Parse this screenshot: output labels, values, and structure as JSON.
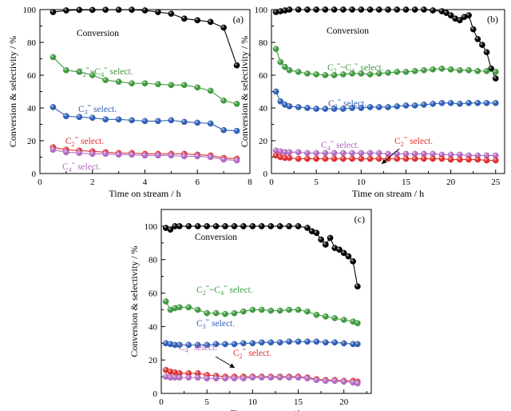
{
  "chart_data": [
    {
      "type": "line",
      "panel_label": "(a)",
      "xlabel": "Time on stream / h",
      "ylabel": "Conversion & selectivity / %",
      "xlim": [
        0,
        8
      ],
      "ylim": [
        0,
        100
      ],
      "xticks": [
        0,
        2,
        4,
        6,
        8
      ],
      "yticks": [
        0,
        20,
        40,
        60,
        80,
        100
      ],
      "series": [
        {
          "key": "conversion",
          "color": "#000000",
          "label": {
            "base": "Conversion",
            "sub": "",
            "sup": "",
            "rest": ""
          },
          "x": [
            0.5,
            1.0,
            1.5,
            2.0,
            2.5,
            3.0,
            3.5,
            4.0,
            4.5,
            5.0,
            5.5,
            6.0,
            6.5,
            7.0,
            7.5
          ],
          "y": [
            98.5,
            99.5,
            99.8,
            99.8,
            99.9,
            99.9,
            99.9,
            99.5,
            98.5,
            97.5,
            94.5,
            93.5,
            92.5,
            89.0,
            66.0
          ]
        },
        {
          "key": "c2c4",
          "color": "#3f9a3f",
          "label": {
            "base": "C",
            "sub": "2",
            "sup": "=",
            "rest": "~C4= select."
          },
          "x": [
            0.5,
            1.0,
            1.5,
            2.0,
            2.5,
            3.0,
            3.5,
            4.0,
            4.5,
            5.0,
            5.5,
            6.0,
            6.5,
            7.0,
            7.5
          ],
          "y": [
            71,
            63,
            62,
            60,
            57,
            56,
            55,
            55,
            54.5,
            54,
            54,
            52.5,
            50.5,
            44.5,
            42.5
          ]
        },
        {
          "key": "c3",
          "color": "#2f5fb5",
          "label": {
            "base": "C",
            "sub": "3",
            "sup": "=",
            "rest": " select."
          },
          "x": [
            0.5,
            1.0,
            1.5,
            2.0,
            2.5,
            3.0,
            3.5,
            4.0,
            4.5,
            5.0,
            5.5,
            6.0,
            6.5,
            7.0,
            7.5
          ],
          "y": [
            40.5,
            35,
            34.5,
            34,
            33,
            33,
            32.5,
            32,
            32,
            32.5,
            31.5,
            31,
            30.5,
            26.5,
            26
          ]
        },
        {
          "key": "c2",
          "color": "#e03030",
          "label": {
            "base": "C",
            "sub": "2",
            "sup": "=",
            "rest": " select."
          },
          "x": [
            0.5,
            1.0,
            1.5,
            2.0,
            2.5,
            3.0,
            3.5,
            4.0,
            4.5,
            5.0,
            5.5,
            6.0,
            6.5,
            7.0,
            7.5
          ],
          "y": [
            16,
            14.5,
            14,
            13.5,
            13,
            12.5,
            12.5,
            12,
            12,
            12,
            12,
            11.5,
            11,
            9.5,
            9
          ]
        },
        {
          "key": "c4",
          "color": "#b36bc2",
          "label": {
            "base": "C",
            "sub": "4",
            "sup": "=",
            "rest": " select."
          },
          "x": [
            0.5,
            1.0,
            1.5,
            2.0,
            2.5,
            3.0,
            3.5,
            4.0,
            4.5,
            5.0,
            5.5,
            6.0,
            6.5,
            7.0,
            7.5
          ],
          "y": [
            14.5,
            13,
            12.5,
            12,
            12,
            11.5,
            11.5,
            11,
            11,
            11,
            10.5,
            10.5,
            10,
            8.5,
            8
          ]
        }
      ]
    },
    {
      "type": "line",
      "panel_label": "(b)",
      "xlabel": "Time on stream / h",
      "ylabel": "Conversion & selectivity / %",
      "xlim": [
        0,
        26
      ],
      "ylim": [
        0,
        100
      ],
      "xticks": [
        0,
        5,
        10,
        15,
        20,
        25
      ],
      "yticks": [
        0,
        20,
        40,
        60,
        80,
        100
      ],
      "series": [
        {
          "key": "conversion",
          "color": "#000000",
          "label": {
            "base": "Conversion",
            "sub": "",
            "sup": "",
            "rest": ""
          },
          "x": [
            0.5,
            1,
            1.5,
            2,
            3,
            4,
            5,
            6,
            7,
            8,
            9,
            10,
            11,
            12,
            13,
            14,
            15,
            16,
            17,
            18,
            19,
            19.5,
            20,
            20.5,
            21,
            21.5,
            22,
            22.5,
            23,
            23.5,
            24,
            24.5,
            25
          ],
          "y": [
            98.5,
            99,
            99.5,
            100,
            100,
            100,
            100,
            100,
            100,
            100,
            100,
            100,
            100,
            100,
            100,
            100,
            100,
            100,
            100,
            99.5,
            99,
            98,
            96.5,
            94.5,
            93.5,
            95.5,
            96.5,
            88,
            82,
            78.5,
            74,
            64,
            58
          ]
        },
        {
          "key": "c2c4",
          "color": "#3f9a3f",
          "label": {
            "base": "C",
            "sub": "2",
            "sup": "=",
            "rest": "~C4= select."
          },
          "x": [
            0.5,
            1,
            1.5,
            2,
            3,
            4,
            5,
            6,
            7,
            8,
            9,
            10,
            11,
            12,
            13,
            14,
            15,
            16,
            17,
            18,
            19,
            20,
            21,
            22,
            23,
            24,
            25
          ],
          "y": [
            76,
            68,
            65,
            63,
            62,
            61,
            60.5,
            60,
            60,
            60.5,
            61,
            61,
            60.5,
            61,
            61.5,
            62,
            62,
            62.5,
            63,
            63.5,
            64,
            63.5,
            63,
            63,
            62.5,
            62.5,
            62
          ]
        },
        {
          "key": "c3",
          "color": "#2f5fb5",
          "label": {
            "base": "C",
            "sub": "3",
            "sup": "=",
            "rest": " select."
          },
          "x": [
            0.5,
            1,
            1.5,
            2,
            3,
            4,
            5,
            6,
            7,
            8,
            9,
            10,
            11,
            12,
            13,
            14,
            15,
            16,
            17,
            18,
            19,
            20,
            21,
            22,
            23,
            24,
            25
          ],
          "y": [
            50,
            44,
            42,
            41,
            40.5,
            40,
            39.5,
            39.5,
            39.5,
            39.5,
            40,
            40,
            40.5,
            40.5,
            40.5,
            41,
            41.5,
            41.5,
            42,
            42.5,
            43,
            43,
            42.5,
            43,
            43,
            43,
            43
          ]
        },
        {
          "key": "c4",
          "color": "#b36bc2",
          "label": {
            "base": "C",
            "sub": "4",
            "sup": "=",
            "rest": " select."
          },
          "x": [
            0.5,
            1,
            1.5,
            2,
            3,
            4,
            5,
            6,
            7,
            8,
            9,
            10,
            11,
            12,
            13,
            14,
            15,
            16,
            17,
            18,
            19,
            20,
            21,
            22,
            23,
            24,
            25
          ],
          "y": [
            14,
            13.5,
            13,
            13,
            13,
            12.5,
            12.5,
            12.5,
            12.5,
            12.5,
            12.5,
            12.5,
            12.5,
            12.5,
            12,
            12,
            12,
            12,
            12,
            12,
            11.5,
            11.5,
            11.5,
            11,
            11,
            11,
            11
          ]
        },
        {
          "key": "c2",
          "color": "#e03030",
          "label": {
            "base": "C",
            "sub": "2",
            "sup": "=",
            "rest": " select."
          },
          "x": [
            0.5,
            1,
            1.5,
            2,
            3,
            4,
            5,
            6,
            7,
            8,
            9,
            10,
            11,
            12,
            13,
            14,
            15,
            16,
            17,
            18,
            19,
            20,
            21,
            22,
            23,
            24,
            25
          ],
          "y": [
            11,
            10,
            9.5,
            9.5,
            9,
            9,
            9,
            9,
            9,
            9,
            9,
            9,
            9,
            9,
            9,
            9,
            9,
            9,
            9,
            9,
            9,
            8.5,
            8.5,
            8.5,
            8.5,
            8,
            8
          ]
        }
      ]
    },
    {
      "type": "line",
      "panel_label": "(c)",
      "xlabel": "Time on stream / h",
      "ylabel": "Conversion & selectivity / %",
      "xlim": [
        0,
        23
      ],
      "ylim": [
        0,
        110
      ],
      "xticks": [
        0,
        5,
        10,
        15,
        20
      ],
      "yticks": [
        0,
        20,
        40,
        60,
        80,
        100
      ],
      "series": [
        {
          "key": "conversion",
          "color": "#000000",
          "label": {
            "base": "Conversion",
            "sub": "",
            "sup": "",
            "rest": ""
          },
          "x": [
            0.5,
            1,
            1.5,
            2,
            3,
            4,
            5,
            6,
            7,
            8,
            9,
            10,
            11,
            12,
            13,
            14,
            15,
            16,
            16.5,
            17,
            17.5,
            18,
            18.5,
            19,
            19.5,
            20,
            20.5,
            21,
            21.5
          ],
          "y": [
            99,
            98,
            100,
            100,
            100,
            100,
            100,
            100,
            100,
            100,
            100,
            100,
            100,
            100,
            100,
            100,
            100,
            99,
            97,
            96,
            92,
            89,
            93,
            87,
            86,
            84,
            82,
            79,
            64
          ]
        },
        {
          "key": "c2c4",
          "color": "#3f9a3f",
          "label": {
            "base": "C",
            "sub": "2",
            "sup": "=",
            "rest": "~C4= select."
          },
          "x": [
            0.5,
            1,
            1.5,
            2,
            3,
            4,
            5,
            6,
            7,
            8,
            9,
            10,
            11,
            12,
            13,
            14,
            15,
            16,
            17,
            18,
            19,
            20,
            21,
            21.5
          ],
          "y": [
            55,
            50,
            51,
            51.5,
            51.5,
            50,
            48,
            48,
            47.5,
            48,
            49,
            50,
            50,
            49.5,
            49.5,
            50,
            50,
            49,
            47,
            46,
            45,
            44,
            43,
            42
          ]
        },
        {
          "key": "c3",
          "color": "#2f5fb5",
          "label": {
            "base": "C",
            "sub": "3",
            "sup": "=",
            "rest": " select."
          },
          "x": [
            0.5,
            1,
            1.5,
            2,
            3,
            4,
            5,
            6,
            7,
            8,
            9,
            10,
            11,
            12,
            13,
            14,
            15,
            16,
            17,
            18,
            19,
            20,
            21,
            21.5
          ],
          "y": [
            30,
            29.5,
            29,
            29,
            29,
            29,
            29,
            29.5,
            29.5,
            29.5,
            30,
            30,
            30.5,
            30.5,
            30.5,
            31,
            31,
            31,
            31,
            30.5,
            30.5,
            30,
            29.5,
            29.5
          ]
        },
        {
          "key": "c2",
          "color": "#e03030",
          "label": {
            "base": "C",
            "sub": "2",
            "sup": "=",
            "rest": " select."
          },
          "x": [
            0.5,
            1,
            1.5,
            2,
            3,
            4,
            5,
            6,
            7,
            8,
            9,
            10,
            11,
            12,
            13,
            14,
            15,
            16,
            17,
            18,
            19,
            20,
            21,
            21.5
          ],
          "y": [
            14,
            13,
            12.5,
            12,
            12,
            12,
            11,
            10.5,
            10,
            10,
            10,
            10,
            10,
            10,
            10,
            10,
            10,
            9.5,
            8.5,
            8,
            8,
            7.5,
            7.5,
            7
          ]
        },
        {
          "key": "c4",
          "color": "#b36bc2",
          "label": {
            "base": "C",
            "sub": "4",
            "sup": "=",
            "rest": " select."
          },
          "x": [
            0.5,
            1,
            1.5,
            2,
            3,
            4,
            5,
            6,
            7,
            8,
            9,
            10,
            11,
            12,
            13,
            14,
            15,
            16,
            17,
            18,
            19,
            20,
            21,
            21.5
          ],
          "y": [
            10,
            9.5,
            9.5,
            9.5,
            9.5,
            9.5,
            9,
            9,
            9,
            9,
            9,
            9.5,
            9.5,
            9.5,
            9.5,
            9.5,
            9.5,
            9,
            8,
            7.5,
            7.5,
            7,
            6.5,
            6
          ]
        }
      ]
    }
  ]
}
